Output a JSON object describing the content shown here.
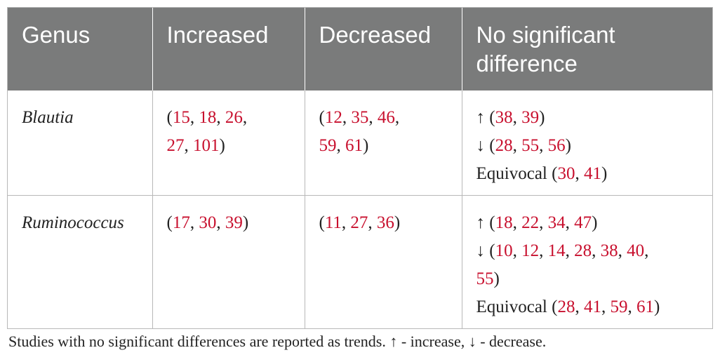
{
  "table": {
    "headers": [
      "Genus",
      "Increased",
      "Decreased",
      "No significant difference"
    ],
    "rows": [
      {
        "genus": "Blautia",
        "increased": [
          "15",
          "18",
          "26",
          "27",
          "101"
        ],
        "decreased": [
          "12",
          "35",
          "46",
          "59",
          "61"
        ],
        "nsd": [
          {
            "prefix": "↑",
            "refs": [
              "38",
              "39"
            ]
          },
          {
            "prefix": "↓",
            "refs": [
              "28",
              "55",
              "56"
            ]
          },
          {
            "prefix": "Equivocal",
            "refs": [
              "30",
              "41"
            ]
          }
        ]
      },
      {
        "genus": "Ruminococcus",
        "increased": [
          "17",
          "30",
          "39"
        ],
        "decreased": [
          "11",
          "27",
          "36"
        ],
        "nsd": [
          {
            "prefix": "↑",
            "refs": [
              "18",
              "22",
              "34",
              "47"
            ]
          },
          {
            "prefix": "↓",
            "refs": [
              "10",
              "12",
              "14",
              "28",
              "38",
              "40",
              "55"
            ]
          },
          {
            "prefix": "Equivocal",
            "refs": [
              "28",
              "41",
              "59",
              "61"
            ]
          }
        ]
      }
    ]
  },
  "footnote": "Studies with no significant differences are reported as trends. ↑ - increase, ↓ - decrease.",
  "colors": {
    "header_bg": "#7a7b7b",
    "reference_link": "#c8102e"
  }
}
